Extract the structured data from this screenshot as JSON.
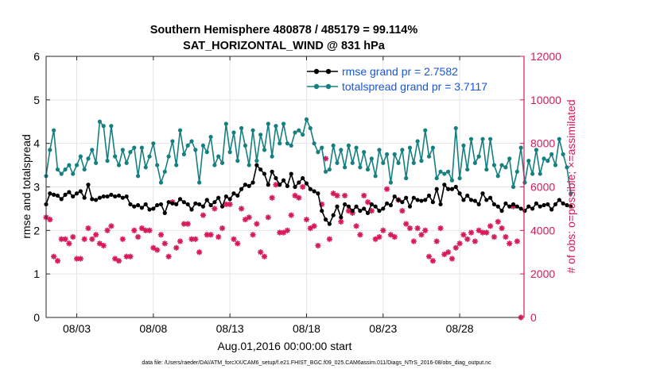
{
  "chart_data": {
    "type": "line",
    "title": "Southern Hemisphere 480878 / 485179 = 99.114%",
    "subtitle": "SAT_HORIZONTAL_WIND @ 831 hPa",
    "xlabel": "Aug.01,2016 00:00:00 start",
    "ylabel_left": "rmse and totalspread",
    "ylabel_right": "# of obs: o=possible; ×=assimilated",
    "footer": "data file: /Users/raeder/DAI/ATM_forcXX/CAM6_setup/f.e21.FHIST_BGC.f09_025.CAM6assim.011/Diags_NTrS_2016-08/obs_diag_output.nc",
    "xlim": [
      1,
      32.2
    ],
    "ylim_left": [
      0,
      6
    ],
    "ylim_right": [
      0,
      12000
    ],
    "xticks": [
      {
        "value": 3,
        "label": "08/03"
      },
      {
        "value": 8,
        "label": "08/08"
      },
      {
        "value": 13,
        "label": "08/13"
      },
      {
        "value": 18,
        "label": "08/18"
      },
      {
        "value": 23,
        "label": "08/23"
      },
      {
        "value": 28,
        "label": "08/28"
      }
    ],
    "yticks_left": [
      "0",
      "1",
      "2",
      "3",
      "4",
      "5",
      "6"
    ],
    "yticks_right": [
      "0",
      "2000",
      "4000",
      "6000",
      "8000",
      "10000",
      "12000"
    ],
    "grid": true,
    "legend_position": "top-right",
    "colors": {
      "rmse": "#000000",
      "spread": "#168080",
      "obs": "#d6195a",
      "legend_text": "#1a56d8"
    },
    "x_start": 1.0,
    "x_step": 0.25,
    "series": [
      {
        "name": "rmse grand pr = 2.7582",
        "key": "rmse",
        "values": [
          2.6,
          2.85,
          2.82,
          2.8,
          2.72,
          2.82,
          2.88,
          2.78,
          2.85,
          2.9,
          2.75,
          3.05,
          2.72,
          2.7,
          2.75,
          2.78,
          2.78,
          2.82,
          2.78,
          2.8,
          2.75,
          2.78,
          2.6,
          2.55,
          2.58,
          2.52,
          2.6,
          2.48,
          2.5,
          2.58,
          2.6,
          2.4,
          2.65,
          2.62,
          2.6,
          2.72,
          2.65,
          2.6,
          2.48,
          2.62,
          2.6,
          2.55,
          2.7,
          2.58,
          2.65,
          2.75,
          2.55,
          2.78,
          2.72,
          2.85,
          2.8,
          2.95,
          3.05,
          3.02,
          3.1,
          3.5,
          3.4,
          3.3,
          3.05,
          3.35,
          3.2,
          3.05,
          3.15,
          3.02,
          3.3,
          3.0,
          3.1,
          3.2,
          3.08,
          2.95,
          2.9,
          2.85,
          2.45,
          2.25,
          2.15,
          2.35,
          2.55,
          2.3,
          2.6,
          2.55,
          2.45,
          2.55,
          2.45,
          2.5,
          2.4,
          2.6,
          2.55,
          2.45,
          2.5,
          2.62,
          2.58,
          2.78,
          2.7,
          2.65,
          2.75,
          2.55,
          2.75,
          2.7,
          2.68,
          2.7,
          2.8,
          2.65,
          2.95,
          2.6,
          3.05,
          2.95,
          2.95,
          3.0,
          2.85,
          2.7,
          2.8,
          2.7,
          2.68,
          2.6,
          2.85,
          2.7,
          2.75,
          2.6,
          2.55,
          2.45,
          2.62,
          2.55,
          2.6,
          2.55,
          2.5,
          2.45,
          2.55,
          2.5,
          2.62,
          2.55,
          2.58,
          2.6,
          2.48,
          2.6,
          2.7,
          2.62,
          2.58,
          2.55
        ]
      },
      {
        "name": "totalspread grand pr = 3.7117",
        "key": "spread",
        "values": [
          3.25,
          3.85,
          4.3,
          3.4,
          3.3,
          3.4,
          3.5,
          3.3,
          3.5,
          3.7,
          3.4,
          3.65,
          3.85,
          3.55,
          4.5,
          4.4,
          3.6,
          4.4,
          3.7,
          3.5,
          3.85,
          3.55,
          3.8,
          3.9,
          3.25,
          3.9,
          3.45,
          3.7,
          4.0,
          3.5,
          3.1,
          3.35,
          3.7,
          4.05,
          3.5,
          4.3,
          3.75,
          3.95,
          4.05,
          3.85,
          3.1,
          3.95,
          3.8,
          4.15,
          3.5,
          3.7,
          3.55,
          4.45,
          3.8,
          4.25,
          3.6,
          4.35,
          3.95,
          3.5,
          4.3,
          3.6,
          4.2,
          3.85,
          4.45,
          3.7,
          4.4,
          4.0,
          4.45,
          4.0,
          3.95,
          4.25,
          4.3,
          4.2,
          4.55,
          4.35,
          4.0,
          3.8,
          3.9,
          3.35,
          3.4,
          3.95,
          3.55,
          3.85,
          3.45,
          3.95,
          3.55,
          3.9,
          3.45,
          3.8,
          3.4,
          3.65,
          3.25,
          3.85,
          3.55,
          3.75,
          3.1,
          3.75,
          3.55,
          3.85,
          3.2,
          3.9,
          3.55,
          4.05,
          3.6,
          4.3,
          3.7,
          3.9,
          3.2,
          3.35,
          3.3,
          3.35,
          3.15,
          4.35,
          3.2,
          3.95,
          3.4,
          4.1,
          3.55,
          3.7,
          4.1,
          3.4,
          4.1,
          3.5,
          3.25,
          3.5,
          3.45,
          3.65,
          3.0,
          3.35,
          3.9,
          3.1,
          3.6,
          3.3,
          3.85,
          3.3,
          3.65,
          3.6,
          3.75,
          3.5,
          4.1,
          3.75,
          3.45,
          2.85
        ]
      }
    ],
    "obs_assimilated": {
      "x": [
        1.0,
        1.25,
        1.5,
        1.75,
        2.0,
        2.25,
        2.5,
        2.75,
        3.0,
        3.25,
        3.5,
        3.75,
        4.0,
        4.25,
        4.5,
        4.75,
        5.0,
        5.25,
        5.5,
        5.75,
        6.0,
        6.25,
        6.5,
        6.75,
        7.0,
        7.25,
        7.5,
        7.75,
        8.0,
        8.25,
        8.5,
        8.75,
        9.0,
        9.25,
        9.5,
        9.75,
        10.0,
        10.25,
        10.5,
        10.75,
        11.0,
        11.25,
        11.5,
        11.75,
        12.0,
        12.25,
        12.5,
        12.75,
        13.0,
        13.25,
        13.5,
        13.75,
        14.0,
        14.25,
        14.5,
        14.75,
        15.0,
        15.25,
        15.5,
        15.75,
        16.0,
        16.25,
        16.5,
        16.75,
        17.0,
        17.25,
        17.5,
        17.75,
        18.0,
        18.25,
        18.5,
        18.75,
        19.0,
        19.25,
        19.5,
        19.75,
        20.0,
        20.25,
        20.5,
        20.75,
        21.0,
        21.25,
        21.5,
        21.75,
        22.0,
        22.25,
        22.5,
        22.75,
        23.0,
        23.25,
        23.5,
        23.75,
        24.0,
        24.25,
        24.5,
        24.75,
        25.0,
        25.25,
        25.5,
        25.75,
        26.0,
        26.25,
        26.5,
        26.75,
        27.0,
        27.25,
        27.5,
        27.75,
        28.0,
        28.25,
        28.5,
        28.75,
        29.0,
        29.25,
        29.5,
        29.75,
        30.0,
        30.25,
        30.5,
        30.75,
        31.0,
        31.25,
        31.5,
        31.75,
        32.0
      ],
      "values": [
        4600,
        4500,
        2800,
        2600,
        3600,
        3600,
        3400,
        3700,
        2700,
        2700,
        3600,
        4100,
        3600,
        3800,
        3400,
        3300,
        4000,
        4200,
        2700,
        2600,
        3600,
        2800,
        2800,
        4000,
        3700,
        4100,
        4000,
        4000,
        3200,
        3100,
        3800,
        3400,
        2800,
        5300,
        3200,
        3500,
        4300,
        4300,
        3600,
        3600,
        3000,
        4700,
        3800,
        3800,
        5000,
        3700,
        4100,
        5200,
        5200,
        3600,
        3400,
        5000,
        4500,
        4600,
        3800,
        4300,
        3000,
        2800,
        4600,
        5500,
        6100,
        3900,
        3900,
        4000,
        4700,
        5600,
        5500,
        6000,
        4500,
        4100,
        4200,
        3300,
        5200,
        7300,
        3600,
        5700,
        5600,
        4400,
        5600,
        4900,
        4800,
        4200,
        3800,
        5600,
        5300,
        4900,
        3600,
        3700,
        4000,
        5900,
        3800,
        3700,
        5400,
        4900,
        4300,
        4100,
        3500,
        4100,
        3800,
        4000,
        2800,
        2600,
        3500,
        4100,
        2900,
        3000,
        2700,
        3200,
        3400,
        3800,
        3600,
        3900,
        3500,
        4000,
        3900,
        3900,
        4200,
        3700,
        4400,
        4100,
        3700,
        3400,
        5100,
        3500,
        0
      ]
    }
  }
}
